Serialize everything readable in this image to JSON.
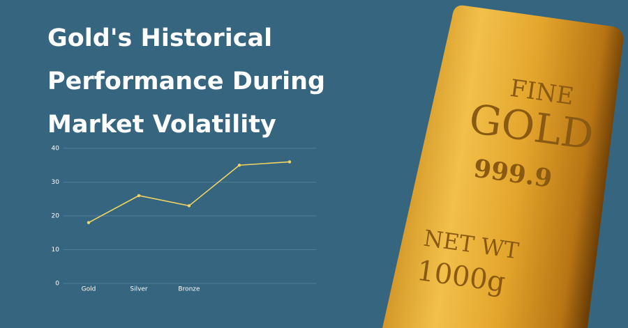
{
  "chart_data": {
    "type": "line",
    "title": [
      "Gold's Historical",
      "Performance During",
      "Market Volatility"
    ],
    "categories": [
      "Gold",
      "Silver",
      "Bronze",
      null,
      null
    ],
    "values": [
      18,
      26,
      23,
      35,
      36
    ],
    "color": "#f2d464",
    "ylim": [
      0,
      40
    ],
    "yticks": [
      0,
      10,
      20,
      30,
      40
    ],
    "grid": true
  },
  "gold_bar": {
    "line1": "FINE",
    "line2": "GOLD",
    "line3": "999.9",
    "line4": "NET WT",
    "line5": "1000g"
  }
}
